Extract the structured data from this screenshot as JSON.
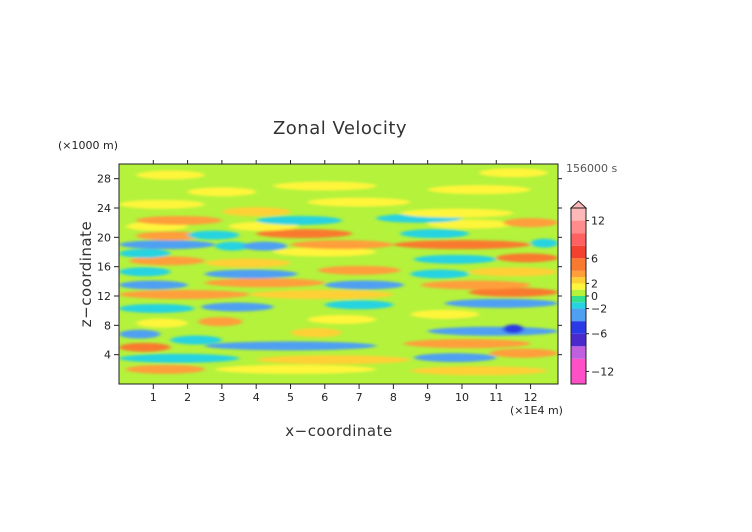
{
  "chart_data": {
    "type": "heatmap",
    "title": "Zonal Velocity",
    "xlabel": "x−coordinate",
    "ylabel": "z−coordinate",
    "x_units": "(×1E4 m)",
    "y_units": "(×1000 m)",
    "time_label": "156000 s",
    "xlim": [
      0,
      12.8
    ],
    "ylim": [
      0,
      30
    ],
    "x_ticks": [
      1,
      2,
      3,
      4,
      5,
      6,
      7,
      8,
      9,
      10,
      11,
      12
    ],
    "y_ticks": [
      4,
      8,
      12,
      16,
      20,
      24,
      28
    ],
    "colorbar": {
      "range": [
        -14,
        14
      ],
      "tick_values": [
        12,
        6,
        2,
        0,
        -2,
        -6,
        -12
      ],
      "tick_labels": [
        "12",
        "6",
        "2",
        "0",
        "−2",
        "−6",
        "−12"
      ],
      "levels": [
        {
          "from": -14,
          "to": -10,
          "color": "#ff50c8"
        },
        {
          "from": -10,
          "to": -8,
          "color": "#c060e0"
        },
        {
          "from": -8,
          "to": -6,
          "color": "#4a2acd"
        },
        {
          "from": -6,
          "to": -4,
          "color": "#2a3ae6"
        },
        {
          "from": -4,
          "to": -2,
          "color": "#4fa0f2"
        },
        {
          "from": -2,
          "to": -1,
          "color": "#25d3e1"
        },
        {
          "from": -1,
          "to": 0,
          "color": "#33e08c"
        },
        {
          "from": 0,
          "to": 1,
          "color": "#b4f23c"
        },
        {
          "from": 1,
          "to": 2,
          "color": "#fff53a"
        },
        {
          "from": 2,
          "to": 3,
          "color": "#ffd034"
        },
        {
          "from": 3,
          "to": 4,
          "color": "#ff9f3a"
        },
        {
          "from": 4,
          "to": 6,
          "color": "#f97a2e"
        },
        {
          "from": 6,
          "to": 8,
          "color": "#f4402f"
        },
        {
          "from": 8,
          "to": 10,
          "color": "#ff6060"
        },
        {
          "from": 10,
          "to": 12,
          "color": "#ff8c8c"
        },
        {
          "from": 12,
          "to": 14,
          "color": "#ffb8b8"
        }
      ]
    },
    "field": {
      "background_value": 0.5,
      "bands": [
        {
          "x_from": 0.2,
          "x_to": 2.5,
          "z": 2.0,
          "value": 3.5
        },
        {
          "x_from": 2.8,
          "x_to": 7.5,
          "z": 2.0,
          "value": 1.5
        },
        {
          "x_from": 8.5,
          "x_to": 12.5,
          "z": 1.8,
          "value": 2.5
        },
        {
          "x_from": 0.0,
          "x_to": 3.5,
          "z": 3.5,
          "value": -1.5
        },
        {
          "x_from": 4.0,
          "x_to": 8.5,
          "z": 3.3,
          "value": 2.5
        },
        {
          "x_from": 8.6,
          "x_to": 11.0,
          "z": 3.6,
          "value": -2.5
        },
        {
          "x_from": 10.8,
          "x_to": 12.8,
          "z": 4.2,
          "value": 3.0
        },
        {
          "x_from": 0.0,
          "x_to": 1.5,
          "z": 5.0,
          "value": 4.5
        },
        {
          "x_from": 2.5,
          "x_to": 7.5,
          "z": 5.2,
          "value": -2.5
        },
        {
          "x_from": 1.5,
          "x_to": 3.0,
          "z": 6.0,
          "value": -1.5
        },
        {
          "x_from": 8.3,
          "x_to": 12.0,
          "z": 5.5,
          "value": 3.5
        },
        {
          "x_from": 0.0,
          "x_to": 1.2,
          "z": 6.8,
          "value": -3.0
        },
        {
          "x_from": 5.0,
          "x_to": 6.5,
          "z": 7.0,
          "value": 2.5
        },
        {
          "x_from": 9.0,
          "x_to": 12.8,
          "z": 7.2,
          "value": -2.5
        },
        {
          "x_from": 11.2,
          "x_to": 11.8,
          "z": 7.5,
          "value": -4.5
        },
        {
          "x_from": 0.5,
          "x_to": 2.0,
          "z": 8.3,
          "value": 1.5
        },
        {
          "x_from": 2.3,
          "x_to": 3.6,
          "z": 8.5,
          "value": 3.5
        },
        {
          "x_from": 5.5,
          "x_to": 7.5,
          "z": 8.8,
          "value": 1.5
        },
        {
          "x_from": 8.5,
          "x_to": 10.5,
          "z": 9.5,
          "value": 1.5
        },
        {
          "x_from": 0.0,
          "x_to": 2.2,
          "z": 10.3,
          "value": -1.5
        },
        {
          "x_from": 2.4,
          "x_to": 4.5,
          "z": 10.5,
          "value": -2.5
        },
        {
          "x_from": 6.0,
          "x_to": 8.0,
          "z": 10.8,
          "value": -1.5
        },
        {
          "x_from": 9.5,
          "x_to": 12.8,
          "z": 11.0,
          "value": -2.5
        },
        {
          "x_from": 0.0,
          "x_to": 3.8,
          "z": 12.2,
          "value": 3.5
        },
        {
          "x_from": 3.8,
          "x_to": 8.0,
          "z": 12.2,
          "value": 2.5
        },
        {
          "x_from": 10.2,
          "x_to": 12.8,
          "z": 12.5,
          "value": 4.5
        },
        {
          "x_from": 0.0,
          "x_to": 2.0,
          "z": 13.5,
          "value": -2.5
        },
        {
          "x_from": 2.5,
          "x_to": 6.0,
          "z": 13.8,
          "value": 3.5
        },
        {
          "x_from": 6.0,
          "x_to": 8.3,
          "z": 13.5,
          "value": -2.5
        },
        {
          "x_from": 8.8,
          "x_to": 12.0,
          "z": 13.5,
          "value": 3.5
        },
        {
          "x_from": 0.0,
          "x_to": 1.5,
          "z": 15.3,
          "value": -1.5
        },
        {
          "x_from": 2.5,
          "x_to": 5.2,
          "z": 15.0,
          "value": -2.5
        },
        {
          "x_from": 5.8,
          "x_to": 8.2,
          "z": 15.5,
          "value": 3.5
        },
        {
          "x_from": 8.5,
          "x_to": 10.2,
          "z": 15.0,
          "value": -1.5
        },
        {
          "x_from": 10.2,
          "x_to": 12.8,
          "z": 15.3,
          "value": 2.5
        },
        {
          "x_from": 0.3,
          "x_to": 2.5,
          "z": 16.8,
          "value": 3.5
        },
        {
          "x_from": 2.5,
          "x_to": 5.0,
          "z": 16.5,
          "value": 2.0
        },
        {
          "x_from": 8.6,
          "x_to": 11.0,
          "z": 17.0,
          "value": -1.5
        },
        {
          "x_from": 11.0,
          "x_to": 12.8,
          "z": 17.2,
          "value": 4.5
        },
        {
          "x_from": 0.0,
          "x_to": 1.5,
          "z": 17.8,
          "value": -1.5
        },
        {
          "x_from": 4.5,
          "x_to": 7.5,
          "z": 18.0,
          "value": 1.5
        },
        {
          "x_from": 0.0,
          "x_to": 2.8,
          "z": 19.0,
          "value": -2.5
        },
        {
          "x_from": 2.8,
          "x_to": 3.8,
          "z": 18.8,
          "value": -1.5
        },
        {
          "x_from": 3.6,
          "x_to": 4.9,
          "z": 18.8,
          "value": -3.5
        },
        {
          "x_from": 5.0,
          "x_to": 8.0,
          "z": 19.0,
          "value": 3.0
        },
        {
          "x_from": 8.0,
          "x_to": 12.0,
          "z": 19.0,
          "value": 4.5
        },
        {
          "x_from": 12.0,
          "x_to": 12.8,
          "z": 19.2,
          "value": -2.0
        },
        {
          "x_from": 0.5,
          "x_to": 2.5,
          "z": 20.2,
          "value": 3.5
        },
        {
          "x_from": 2.0,
          "x_to": 3.5,
          "z": 20.3,
          "value": -1.5
        },
        {
          "x_from": 4.0,
          "x_to": 6.8,
          "z": 20.5,
          "value": 4.0
        },
        {
          "x_from": 8.2,
          "x_to": 10.2,
          "z": 20.5,
          "value": -1.5
        },
        {
          "x_from": 0.2,
          "x_to": 2.0,
          "z": 21.5,
          "value": 1.5
        },
        {
          "x_from": 3.2,
          "x_to": 5.2,
          "z": 21.5,
          "value": 1.5
        },
        {
          "x_from": 9.0,
          "x_to": 11.5,
          "z": 21.8,
          "value": 1.5
        },
        {
          "x_from": 0.5,
          "x_to": 3.0,
          "z": 22.3,
          "value": 3.5
        },
        {
          "x_from": 4.0,
          "x_to": 6.5,
          "z": 22.3,
          "value": -1.5
        },
        {
          "x_from": 7.5,
          "x_to": 10.0,
          "z": 22.6,
          "value": -1.5
        },
        {
          "x_from": 11.2,
          "x_to": 12.8,
          "z": 22.0,
          "value": 3.0
        },
        {
          "x_from": 3.0,
          "x_to": 5.0,
          "z": 23.5,
          "value": 2.5
        },
        {
          "x_from": 8.2,
          "x_to": 11.5,
          "z": 23.3,
          "value": 1.5
        },
        {
          "x_from": 0.0,
          "x_to": 2.5,
          "z": 24.5,
          "value": 1.5
        },
        {
          "x_from": 5.5,
          "x_to": 8.5,
          "z": 24.8,
          "value": 1.5
        },
        {
          "x_from": 2.0,
          "x_to": 4.0,
          "z": 26.2,
          "value": 1.5
        },
        {
          "x_from": 4.5,
          "x_to": 7.5,
          "z": 27.0,
          "value": 1.5
        },
        {
          "x_from": 9.0,
          "x_to": 12.0,
          "z": 26.5,
          "value": 1.5
        },
        {
          "x_from": 0.5,
          "x_to": 2.5,
          "z": 28.5,
          "value": 1.5
        },
        {
          "x_from": 10.5,
          "x_to": 12.5,
          "z": 28.8,
          "value": 1.5
        }
      ]
    }
  }
}
